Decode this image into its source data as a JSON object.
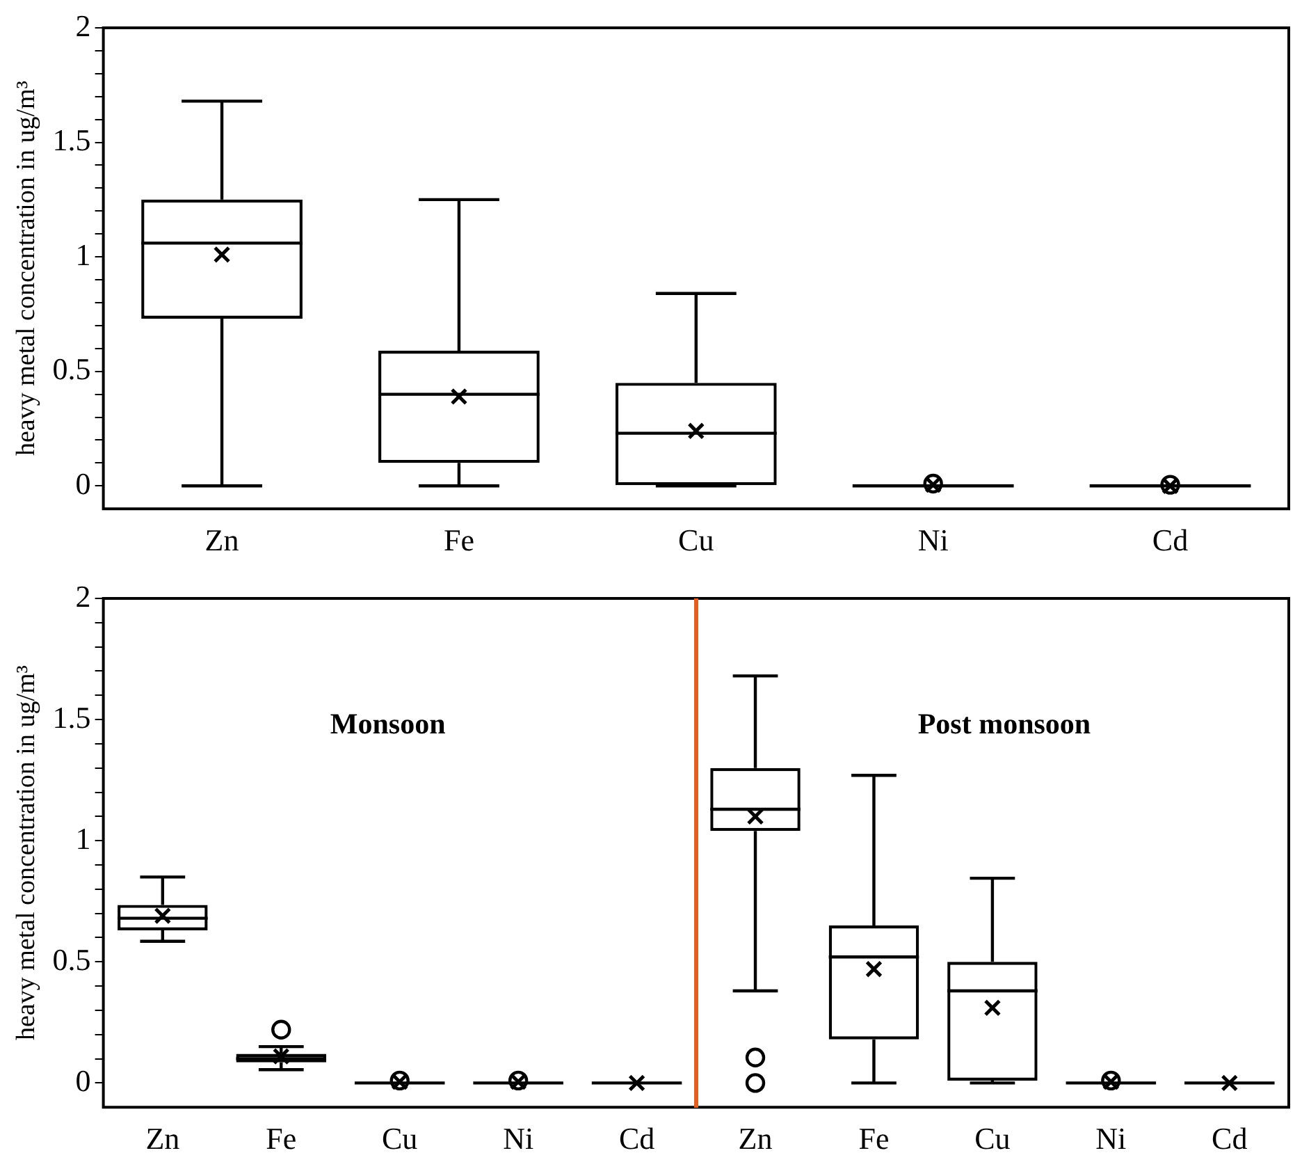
{
  "chart_data": [
    {
      "type": "box",
      "ylabel": "heavy metal concentration in ug/m³",
      "categories": [
        "Zn",
        "Fe",
        "Cu",
        "Ni",
        "Cd"
      ],
      "boxes": [
        {
          "low": 0,
          "q1": 0.73,
          "median": 1.06,
          "q3": 1.25,
          "high": 1.68,
          "mean": 1.01
        },
        {
          "low": 0,
          "q1": 0.1,
          "median": 0.4,
          "q3": 0.59,
          "high": 1.25,
          "mean": 0.39
        },
        {
          "low": 0,
          "q1": 0,
          "median": 0.23,
          "q3": 0.45,
          "high": 0.84,
          "mean": 0.24
        },
        {
          "low": 0,
          "q1": 0,
          "median": 0,
          "q3": 0,
          "high": 0,
          "mean": 0.005,
          "outliers": [
            0.01
          ]
        },
        {
          "low": 0,
          "q1": 0,
          "median": 0,
          "q3": 0,
          "high": 0,
          "mean": 0,
          "outliers": [
            0.005
          ]
        }
      ],
      "ylim": [
        -0.1,
        2
      ],
      "yticks": [
        0,
        {
          "value": 0.1,
          "label": null
        },
        {
          "value": 0.2,
          "label": null
        },
        {
          "value": 0.3,
          "label": null
        },
        {
          "value": 0.4,
          "label": null
        },
        0.5,
        {
          "value": 0.6,
          "label": null
        },
        {
          "value": 0.7,
          "label": null
        },
        {
          "value": 0.8,
          "label": null
        },
        {
          "value": 0.9,
          "label": null
        },
        1,
        {
          "value": 1.1,
          "label": null
        },
        {
          "value": 1.2,
          "label": null
        },
        {
          "value": 1.3,
          "label": null
        },
        {
          "value": 1.4,
          "label": null
        },
        1.5,
        {
          "value": 1.6,
          "label": null
        },
        {
          "value": 1.7,
          "label": null
        },
        {
          "value": 1.8,
          "label": null
        },
        {
          "value": 1.9,
          "label": null
        },
        2
      ],
      "marker": "cross",
      "grid": false,
      "legend": false
    },
    {
      "type": "box",
      "ylabel": "heavy metal concentration in ug/m³",
      "categories": [
        "Zn",
        "Fe",
        "Cu",
        "Ni",
        "Cd",
        "Zn",
        "Fe",
        "Cu",
        "Ni",
        "Cd"
      ],
      "boxes": [
        {
          "low": 0.585,
          "q1": 0.63,
          "median": 0.68,
          "q3": 0.735,
          "high": 0.85,
          "mean": 0.69
        },
        {
          "low": 0.055,
          "q1": 0.085,
          "median": 0.1,
          "q3": 0.12,
          "high": 0.15,
          "mean": 0.11,
          "outliers": [
            0.22
          ]
        },
        {
          "low": 0,
          "q1": 0,
          "median": 0,
          "q3": 0,
          "high": 0,
          "mean": 0.005,
          "outliers": [
            0.01
          ]
        },
        {
          "low": 0,
          "q1": 0,
          "median": 0,
          "q3": 0,
          "high": 0,
          "mean": 0.005,
          "outliers": [
            0.01
          ]
        },
        {
          "low": 0,
          "q1": 0,
          "median": 0,
          "q3": 0,
          "high": 0,
          "mean": 0
        },
        {
          "low": 0.38,
          "q1": 1.04,
          "median": 1.13,
          "q3": 1.3,
          "high": 1.68,
          "mean": 1.1,
          "outliers": [
            0.105,
            0
          ]
        },
        {
          "low": 0,
          "q1": 0.18,
          "median": 0.52,
          "q3": 0.65,
          "high": 1.27,
          "mean": 0.47
        },
        {
          "low": 0,
          "q1": 0.01,
          "median": 0.38,
          "q3": 0.5,
          "high": 0.845,
          "mean": 0.31
        },
        {
          "low": 0,
          "q1": 0,
          "median": 0,
          "q3": 0,
          "high": 0,
          "mean": 0.005,
          "outliers": [
            0.01
          ]
        },
        {
          "low": 0,
          "q1": 0,
          "median": 0,
          "q3": 0,
          "high": 0,
          "mean": 0
        }
      ],
      "ylim": [
        -0.1,
        2
      ],
      "yticks": [
        0,
        {
          "value": 0.1,
          "label": null
        },
        {
          "value": 0.2,
          "label": null
        },
        {
          "value": 0.3,
          "label": null
        },
        {
          "value": 0.4,
          "label": null
        },
        0.5,
        {
          "value": 0.6,
          "label": null
        },
        {
          "value": 0.7,
          "label": null
        },
        {
          "value": 0.8,
          "label": null
        },
        {
          "value": 0.9,
          "label": null
        },
        1,
        {
          "value": 1.1,
          "label": null
        },
        {
          "value": 1.2,
          "label": null
        },
        {
          "value": 1.3,
          "label": null
        },
        {
          "value": 1.4,
          "label": null
        },
        1.5,
        {
          "value": 1.6,
          "label": null
        },
        {
          "value": 1.7,
          "label": null
        },
        {
          "value": 1.8,
          "label": null
        },
        {
          "value": 1.9,
          "label": null
        },
        2
      ],
      "annotations": [
        "Monsoon",
        "Post monsoon"
      ],
      "marker": "cross",
      "grid": false,
      "legend": false
    }
  ]
}
